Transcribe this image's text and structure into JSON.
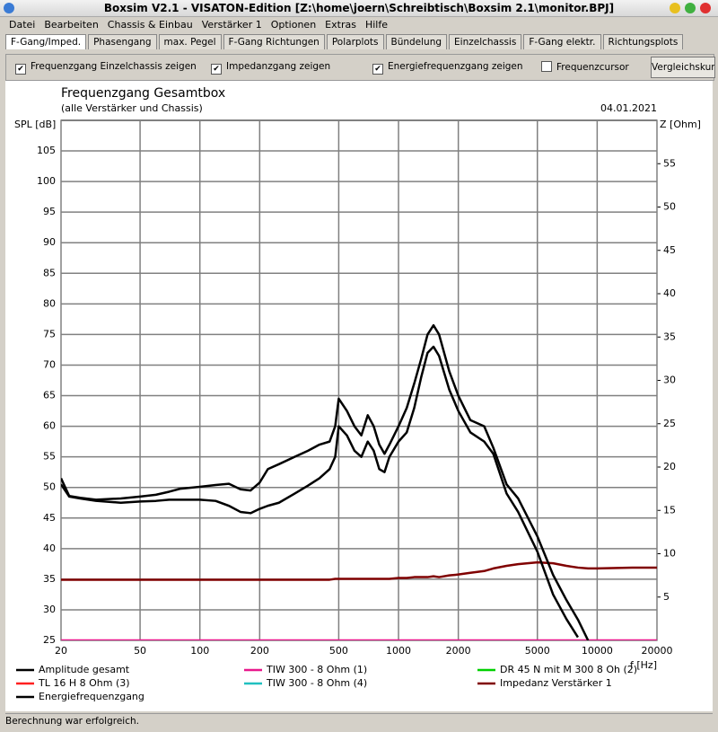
{
  "window": {
    "title": "Boxsim V2.1 - VISATON-Edition [Z:\\home\\joern\\Schreibtisch\\Boxsim 2.1\\monitor.BPJ]"
  },
  "menu": [
    "Datei",
    "Bearbeiten",
    "Chassis & Einbau",
    "Verstärker 1",
    "Optionen",
    "Extras",
    "Hilfe"
  ],
  "tabs": [
    "F-Gang/Imped.",
    "Phasengang",
    "max. Pegel",
    "F-Gang Richtungen",
    "Polarplots",
    "Bündelung",
    "Einzelchassis",
    "F-Gang elektr.",
    "Richtungsplots"
  ],
  "options": [
    {
      "label": "Frequenzgang Einzelchassis zeigen",
      "checked": true
    },
    {
      "label": "Impedanzgang zeigen",
      "checked": true
    },
    {
      "label": "Energiefrequenzgang zeigen",
      "checked": true
    },
    {
      "label": "Frequenzcursor",
      "checked": false
    }
  ],
  "compare_button": "Vergleichskur",
  "status": "Berechnung war erfolgreich.",
  "chart_data": {
    "type": "line",
    "title": "Frequenzgang Gesamtbox",
    "subtitle": "(alle Verstärker und Chassis)",
    "date": "04.01.2021",
    "ylabel": "SPL [dB]",
    "y2label": "Z [Ohm]",
    "xlabel": "f [Hz]",
    "xscale": "log",
    "grid": true,
    "xlim": [
      20,
      20000
    ],
    "xticks": [
      20,
      50,
      100,
      200,
      500,
      1000,
      2000,
      5000,
      10000,
      20000
    ],
    "ylim": [
      25,
      110
    ],
    "yticks": [
      25,
      30,
      35,
      40,
      45,
      50,
      55,
      60,
      65,
      70,
      75,
      80,
      85,
      90,
      95,
      100,
      105
    ],
    "y2lim": [
      0,
      60
    ],
    "y2ticks": [
      5,
      10,
      15,
      20,
      25,
      30,
      35,
      40,
      45,
      50,
      55
    ],
    "x": [
      20,
      22,
      25,
      30,
      40,
      50,
      60,
      70,
      80,
      100,
      120,
      140,
      160,
      180,
      200,
      220,
      250,
      300,
      350,
      400,
      450,
      480,
      500,
      550,
      600,
      650,
      700,
      750,
      800,
      850,
      900,
      1000,
      1100,
      1200,
      1300,
      1400,
      1500,
      1600,
      1800,
      2000,
      2300,
      2700,
      3000,
      3500,
      4000,
      5000,
      6000,
      7000,
      8000,
      9000,
      10000,
      15000,
      20000
    ],
    "series": [
      {
        "name": "Amplitude gesamt",
        "color": "#000000",
        "values": [
          51.5,
          48.6,
          48.3,
          48,
          48.2,
          48.5,
          48.8,
          49.3,
          49.8,
          50.1,
          50.4,
          50.6,
          49.7,
          49.5,
          50.8,
          53,
          53.8,
          55,
          56,
          57,
          57.5,
          60,
          64.5,
          62.5,
          60,
          58.5,
          61.8,
          60,
          57,
          55.5,
          57,
          60,
          63,
          67,
          71,
          75,
          76.5,
          75,
          69,
          65,
          61,
          60,
          56.5,
          50.5,
          48.2,
          42,
          35.7,
          31.6,
          28.4,
          25,
          null,
          null,
          null
        ]
      },
      {
        "name": "TIW 300 - 8 Ohm (1)",
        "color": "#e8188c",
        "values": [
          25,
          25,
          25,
          25,
          25,
          25,
          25,
          25,
          25,
          25,
          25,
          25,
          25,
          25,
          25,
          25,
          25,
          25,
          25,
          25,
          25,
          25,
          25,
          25,
          25,
          25,
          25,
          25,
          25,
          25,
          25,
          25,
          25,
          25,
          25,
          25,
          25,
          25,
          25,
          25,
          25,
          25,
          25,
          25,
          25,
          25,
          25,
          25,
          25,
          25,
          25,
          25,
          25
        ]
      },
      {
        "name": "DR 45 N mit M 300 8 Oh (2)",
        "color": "#00d000",
        "values": [
          null,
          null,
          null,
          null,
          null,
          null,
          null,
          null,
          null,
          null,
          null,
          null,
          null,
          null,
          null,
          null,
          null,
          null,
          null,
          null,
          null,
          null,
          null,
          null,
          null,
          null,
          null,
          null,
          null,
          null,
          null,
          null,
          null,
          null,
          null,
          null,
          null,
          null,
          null,
          null,
          null,
          null,
          null,
          null,
          null,
          null,
          null,
          null,
          null,
          null,
          null,
          null,
          null
        ]
      },
      {
        "name": "TL 16 H 8 Ohm (3)",
        "color": "#ff2020",
        "values": [
          null,
          null,
          null,
          null,
          null,
          null,
          null,
          null,
          null,
          null,
          null,
          null,
          null,
          null,
          null,
          null,
          null,
          null,
          null,
          null,
          null,
          null,
          null,
          null,
          null,
          null,
          null,
          null,
          null,
          null,
          null,
          null,
          null,
          null,
          null,
          null,
          null,
          null,
          null,
          null,
          null,
          null,
          null,
          null,
          null,
          null,
          null,
          null,
          null,
          null,
          null,
          null,
          null
        ]
      },
      {
        "name": "TIW 300 - 8 Ohm (4)",
        "color": "#20c0c0",
        "values": [
          null,
          null,
          null,
          null,
          null,
          null,
          null,
          null,
          null,
          null,
          null,
          null,
          null,
          null,
          null,
          null,
          null,
          null,
          null,
          null,
          null,
          null,
          null,
          null,
          null,
          null,
          null,
          null,
          null,
          null,
          null,
          null,
          null,
          null,
          null,
          null,
          null,
          null,
          null,
          null,
          null,
          null,
          null,
          null,
          null,
          null,
          null,
          null,
          null,
          null,
          null,
          null,
          null
        ]
      },
      {
        "name": "Impedanz Verstärker 1",
        "color": "#800000",
        "axis": "y2",
        "values": [
          7,
          7,
          7,
          7,
          7,
          7,
          7,
          7,
          7,
          7,
          7,
          7,
          7,
          7,
          7,
          7,
          7,
          7,
          7,
          7,
          7,
          7.1,
          7.1,
          7.1,
          7.1,
          7.1,
          7.1,
          7.1,
          7.1,
          7.1,
          7.1,
          7.2,
          7.2,
          7.3,
          7.3,
          7.3,
          7.4,
          7.3,
          7.5,
          7.6,
          7.8,
          8,
          8.3,
          8.6,
          8.8,
          9,
          8.9,
          8.6,
          8.4,
          8.3,
          8.3,
          8.4,
          8.4
        ]
      },
      {
        "name": "Energiefrequenzgang",
        "color": "#000000",
        "values": [
          50.5,
          48.5,
          48.2,
          47.8,
          47.5,
          47.7,
          47.8,
          48,
          48,
          48,
          47.8,
          47,
          46,
          45.8,
          46.5,
          47,
          47.5,
          49,
          50.3,
          51.5,
          53,
          55,
          60,
          58.5,
          56,
          55,
          57.5,
          56,
          53,
          52.5,
          55,
          57.5,
          59,
          63,
          68,
          72,
          73,
          71.5,
          66,
          62.5,
          59,
          57.5,
          55.5,
          49,
          46,
          39.5,
          32.5,
          28.5,
          25.5,
          null,
          null,
          null,
          null
        ]
      }
    ]
  }
}
